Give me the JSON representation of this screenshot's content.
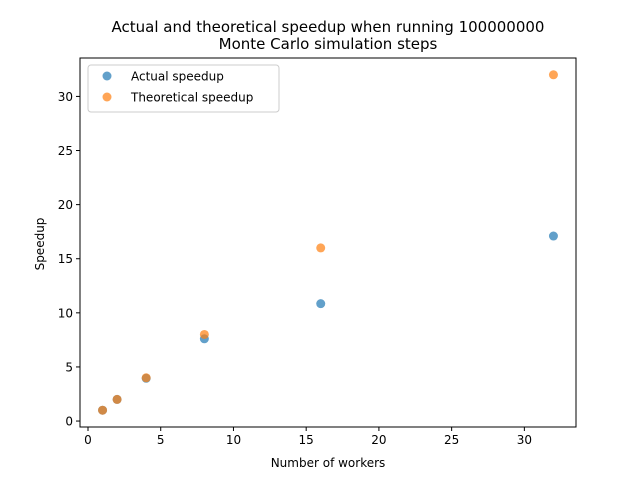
{
  "chart_data": {
    "type": "scatter",
    "title_line1": "Actual and theoretical speedup when running 100000000",
    "title_line2": "Monte Carlo simulation steps",
    "xlabel": "Number of workers",
    "ylabel": "Speedup",
    "xlim": [
      -0.55,
      33.55
    ],
    "ylim": [
      -0.55,
      33.55
    ],
    "xticks": [
      0,
      5,
      10,
      15,
      20,
      25,
      30
    ],
    "yticks": [
      0,
      5,
      10,
      15,
      20,
      25,
      30
    ],
    "grid": false,
    "legend": "upper-left",
    "series": [
      {
        "name": "Actual speedup",
        "color": "#1f77b4",
        "x": [
          1,
          2,
          4,
          8,
          16,
          32
        ],
        "y": [
          1.0,
          2.0,
          3.95,
          7.6,
          10.85,
          17.1
        ]
      },
      {
        "name": "Theoretical speedup",
        "color": "#ff7f0e",
        "x": [
          1,
          2,
          4,
          8,
          16,
          32
        ],
        "y": [
          1,
          2,
          4,
          8,
          16,
          32
        ]
      }
    ]
  }
}
